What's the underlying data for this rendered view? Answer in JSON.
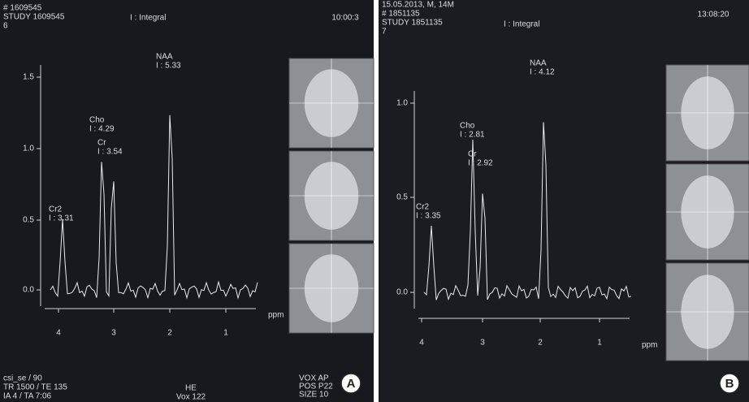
{
  "panels": [
    {
      "header": {
        "lines": [
          "# 1609545",
          "STUDY 1609545",
          "6"
        ],
        "mode": "I : Integral",
        "time": "10:00:3"
      },
      "yticks": [
        "1.5",
        "1.0",
        "0.5",
        "0.0"
      ],
      "xticks": [
        "4",
        "3",
        "2",
        "1"
      ],
      "x_unit": "ppm",
      "peaks": [
        {
          "name": "Cr2",
          "integral": "I : 3.31"
        },
        {
          "name": "Cho",
          "integral": "I : 4.29"
        },
        {
          "name": "Cr",
          "integral": "I : 3.54"
        },
        {
          "name": "NAA",
          "integral": "I : 5.33"
        }
      ],
      "footer": [
        "csi_se / 90",
        "TR 1500 / TE 135",
        "IA 4 / TA 7:06"
      ],
      "footer_center": [
        "HE",
        "Vox 122"
      ],
      "footer_right": [
        "VOX  AP",
        "POS  P22",
        "SIZE  10"
      ],
      "badge": "A"
    },
    {
      "header": {
        "lines": [
          "15.05.2013, M, 14M",
          "# 1851135",
          "STUDY 1851135",
          "7"
        ],
        "mode": "I : Integral",
        "time": "13:08:20"
      },
      "yticks": [
        "1.0",
        "0.5",
        "0.0"
      ],
      "xticks": [
        "4",
        "3",
        "2",
        "1"
      ],
      "x_unit": "ppm",
      "peaks": [
        {
          "name": "Cr2",
          "integral": "I : 3.35"
        },
        {
          "name": "Cho",
          "integral": "I : 2.81"
        },
        {
          "name": "Cr",
          "integral": "I : 2.92"
        },
        {
          "name": "NAA",
          "integral": "I : 4.12"
        }
      ],
      "footer": [],
      "footer_center": [],
      "footer_right": [],
      "badge": "B"
    }
  ]
}
